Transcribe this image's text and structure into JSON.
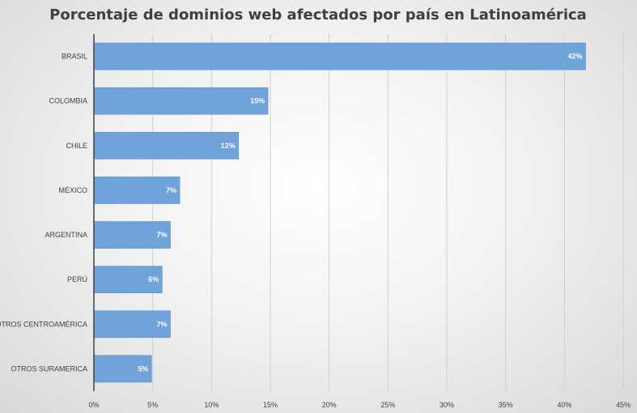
{
  "chart_data": {
    "type": "bar",
    "orientation": "horizontal",
    "title": "Porcentaje de dominios web afectados por país en Latinoamérica",
    "categories": [
      "BRASIL",
      "COLOMBIA",
      "CHILE",
      "MÉXICO",
      "ARGENTINA",
      "PERÚ",
      "OTROS CENTROAMÉRICA",
      "OTROS SURAMERICA"
    ],
    "values": [
      41.8,
      14.8,
      12.3,
      7.3,
      6.5,
      5.8,
      6.5,
      4.9
    ],
    "data_labels": [
      "42%",
      "15%",
      "12%",
      "7%",
      "7%",
      "6%",
      "7%",
      "5%"
    ],
    "xlim": [
      0,
      45
    ],
    "x_ticks": [
      0,
      5,
      10,
      15,
      20,
      25,
      30,
      35,
      40,
      45
    ],
    "x_tick_labels": [
      "0%",
      "5%",
      "10%",
      "15%",
      "20%",
      "25%",
      "30%",
      "35%",
      "40%",
      "45%"
    ],
    "grid": "vertical",
    "legend": "none",
    "colors": {
      "bar": "#6fa3d9",
      "bar_edge": "#5b8fc9",
      "grid": "#d0d0d0",
      "axis": "#404040"
    }
  }
}
